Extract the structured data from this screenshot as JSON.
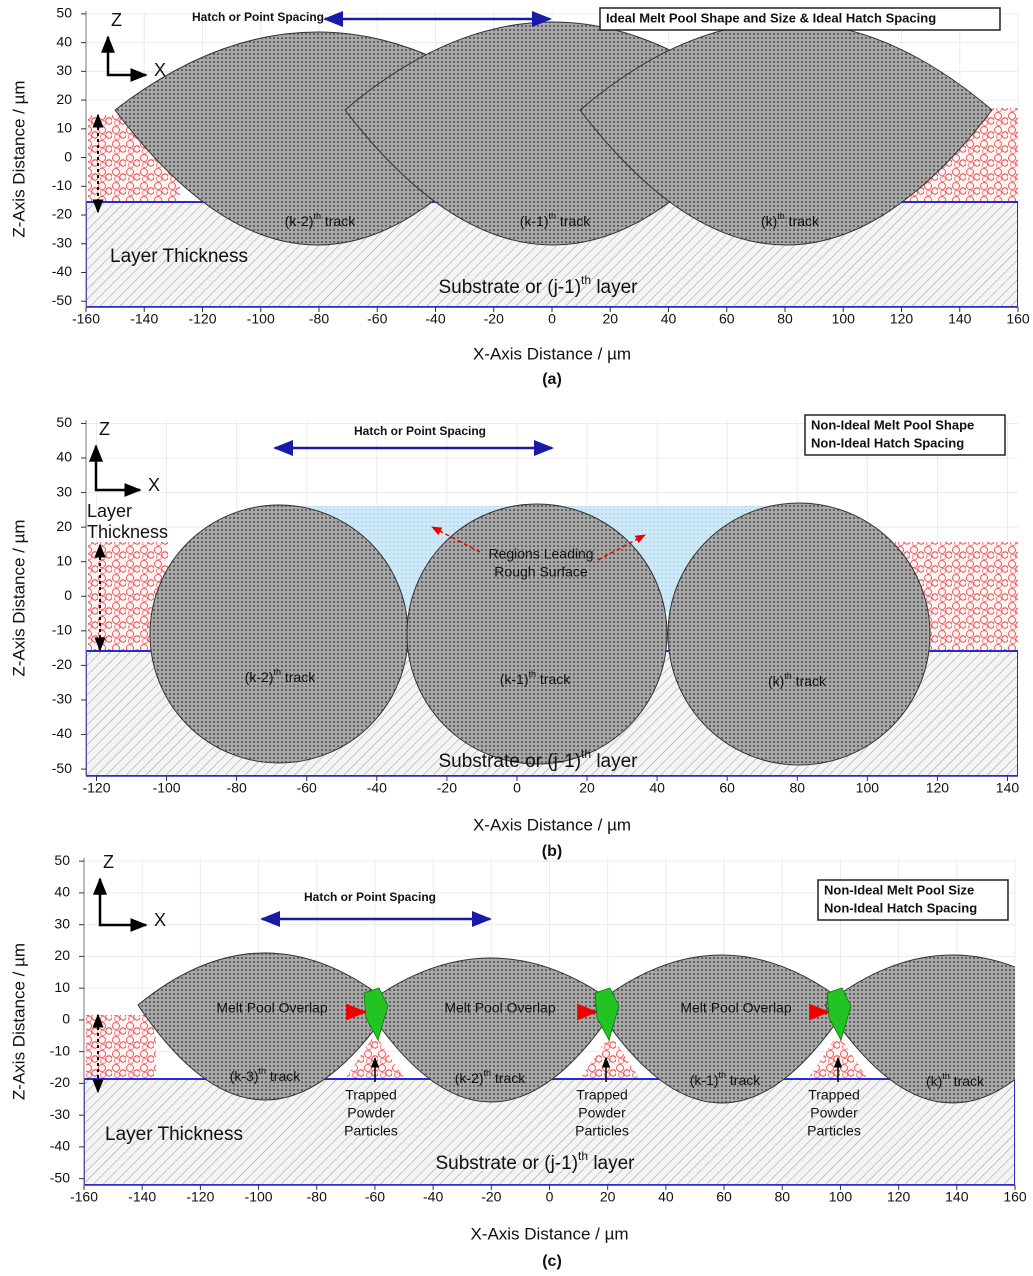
{
  "chart_data": [
    {
      "type": "diagram",
      "caption": "(a)",
      "xlabel": "X-Axis Distance / µm",
      "ylabel": "Z-Axis Distance / µm",
      "xlim": [
        -160,
        160
      ],
      "ylim": [
        -52,
        51
      ],
      "xticks": [
        -160,
        -140,
        -120,
        -100,
        -80,
        -60,
        -40,
        -20,
        0,
        20,
        40,
        60,
        80,
        100,
        120,
        140,
        160
      ],
      "yticks": [
        -50,
        -40,
        -30,
        -20,
        -10,
        0,
        10,
        20,
        30,
        40,
        50
      ],
      "grid": true,
      "axis_z": "Z",
      "axis_x": "X",
      "note": [
        "Ideal Melt Pool Shape and Size & Ideal Hatch Spacing"
      ],
      "spacing": "Hatch or Point Spacing",
      "layer": [
        "Layer Thickness"
      ],
      "substrate": {
        "text": "Substrate or (j-1)",
        "sup": "th",
        "suffix": " layer"
      },
      "tracks": [
        {
          "text": "(k-2)",
          "sup": "th",
          "suffix": " track"
        },
        {
          "text": "(k-1)",
          "sup": "th",
          "suffix": " track"
        },
        {
          "text": "(k)",
          "sup": "th",
          "suffix": " track"
        }
      ]
    },
    {
      "type": "diagram",
      "caption": "(b)",
      "xlabel": "X-Axis Distance / µm",
      "ylabel": "Z-Axis Distance / µm",
      "xlim": [
        -123,
        143
      ],
      "ylim": [
        -52,
        51
      ],
      "xticks": [
        -120,
        -100,
        -80,
        -60,
        -40,
        -20,
        0,
        20,
        40,
        60,
        80,
        100,
        120,
        140
      ],
      "yticks": [
        -50,
        -40,
        -30,
        -20,
        -10,
        0,
        10,
        20,
        30,
        40,
        50
      ],
      "grid": true,
      "axis_z": "Z",
      "axis_x": "X",
      "note": [
        "Non-Ideal Melt Pool Shape",
        "Non-Ideal Hatch Spacing"
      ],
      "spacing": "Hatch or Point Spacing",
      "layer": [
        "Layer",
        "Thickness"
      ],
      "substrate": {
        "text": "Substrate or (j-1)",
        "sup": "th",
        "suffix": " layer"
      },
      "tracks": [
        {
          "text": "(k-2)",
          "sup": "th",
          "suffix": " track"
        },
        {
          "text": "(k-1)",
          "sup": "th",
          "suffix": " track"
        },
        {
          "text": "(k)",
          "sup": "th",
          "suffix": " track"
        }
      ],
      "regions": [
        "Regions Leading",
        "Rough Surface"
      ]
    },
    {
      "type": "diagram",
      "caption": "(c)",
      "xlabel": "X-Axis Distance / µm",
      "ylabel": "Z-Axis Distance / µm",
      "xlim": [
        -160,
        160
      ],
      "ylim": [
        -52,
        51
      ],
      "xticks": [
        -160,
        -140,
        -120,
        -100,
        -80,
        -60,
        -40,
        -20,
        0,
        20,
        40,
        60,
        80,
        100,
        120,
        140,
        160
      ],
      "yticks": [
        -50,
        -40,
        -30,
        -20,
        -10,
        0,
        10,
        20,
        30,
        40,
        50
      ],
      "grid": true,
      "axis_z": "Z",
      "axis_x": "X",
      "note": [
        "Non-Ideal Melt Pool Size",
        "Non-Ideal Hatch Spacing"
      ],
      "spacing": "Hatch or Point Spacing",
      "layer": [
        "Layer Thickness"
      ],
      "substrate": {
        "text": "Substrate or (j-1)",
        "sup": "th",
        "suffix": " layer"
      },
      "tracks": [
        {
          "text": "(k-3)",
          "sup": "th",
          "suffix": " track"
        },
        {
          "text": "(k-2)",
          "sup": "th",
          "suffix": " track"
        },
        {
          "text": "(k-1)",
          "sup": "th",
          "suffix": " track"
        },
        {
          "text": "(k)",
          "sup": "th",
          "suffix": " track"
        }
      ],
      "overlaps": [
        "Melt Pool Overlap",
        "Melt Pool Overlap",
        "Melt Pool Overlap"
      ],
      "trapped": [
        [
          "Trapped",
          "Powder",
          "Particles"
        ],
        [
          "Trapped",
          "Powder",
          "Particles"
        ],
        [
          "Trapped",
          "Powder",
          "Particles"
        ]
      ]
    }
  ]
}
